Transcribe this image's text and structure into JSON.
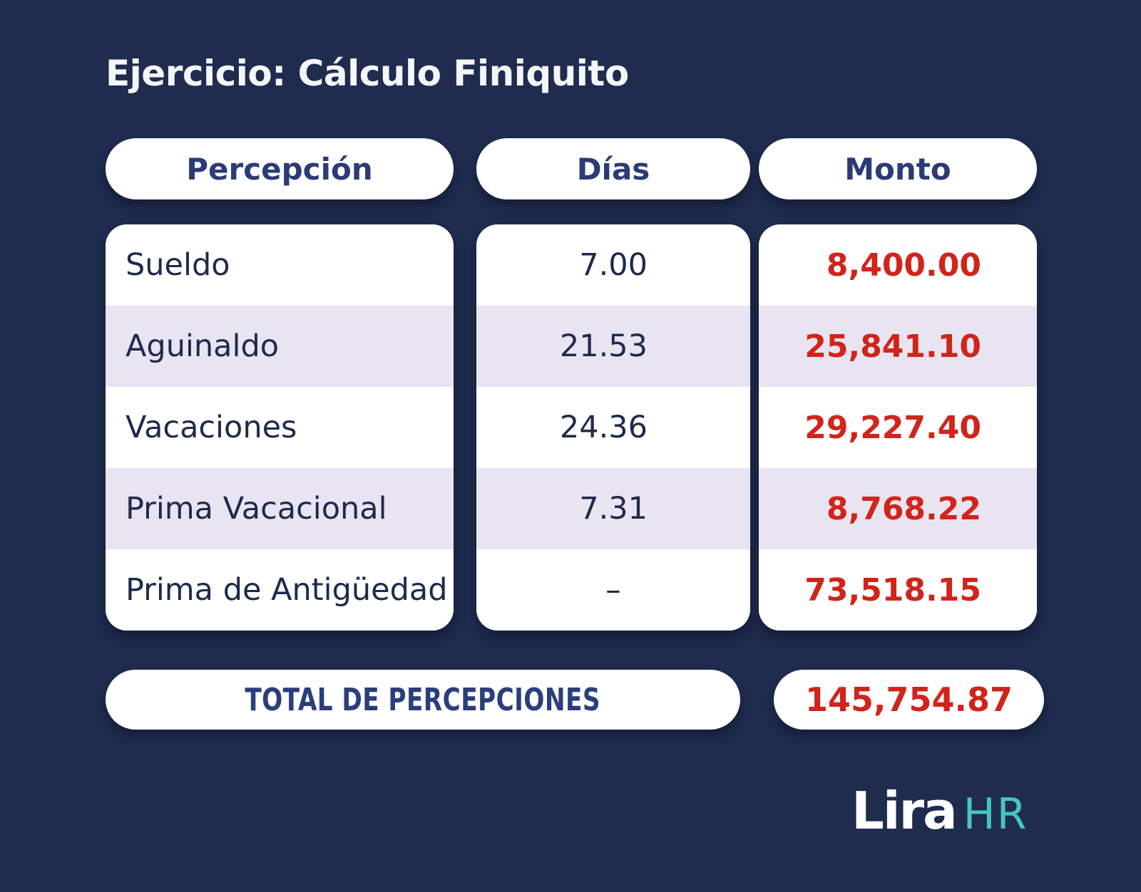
{
  "title": "Ejercicio: Cálculo Finiquito",
  "table": {
    "columns": [
      "Percepción",
      "Días",
      "Monto"
    ],
    "rows": [
      {
        "percepcion": "Sueldo",
        "dias": "7.00",
        "monto": "8,400.00"
      },
      {
        "percepcion": "Aguinaldo",
        "dias": "21.53",
        "monto": "25,841.10"
      },
      {
        "percepcion": "Vacaciones",
        "dias": "24.36",
        "monto": "29,227.40"
      },
      {
        "percepcion": "Prima Vacacional",
        "dias": "7.31",
        "monto": "8,768.22"
      },
      {
        "percepcion": "Prima de Antigüedad",
        "dias": "–",
        "monto": "73,518.15"
      }
    ],
    "total": {
      "label": "TOTAL DE PERCEPCIONES",
      "value": "145,754.87"
    }
  },
  "logo": {
    "primary": "Lira",
    "secondary": "HR"
  },
  "colors": {
    "background_navy": "#1f2c4e",
    "stripe_lavender": "#e9e4f1",
    "heading_navy": "#2b3b76",
    "row_text_navy": "#1e2a4c",
    "amount_red": "#d1241a",
    "logo_teal": "#46c6bf",
    "card_white": "#ffffff"
  }
}
